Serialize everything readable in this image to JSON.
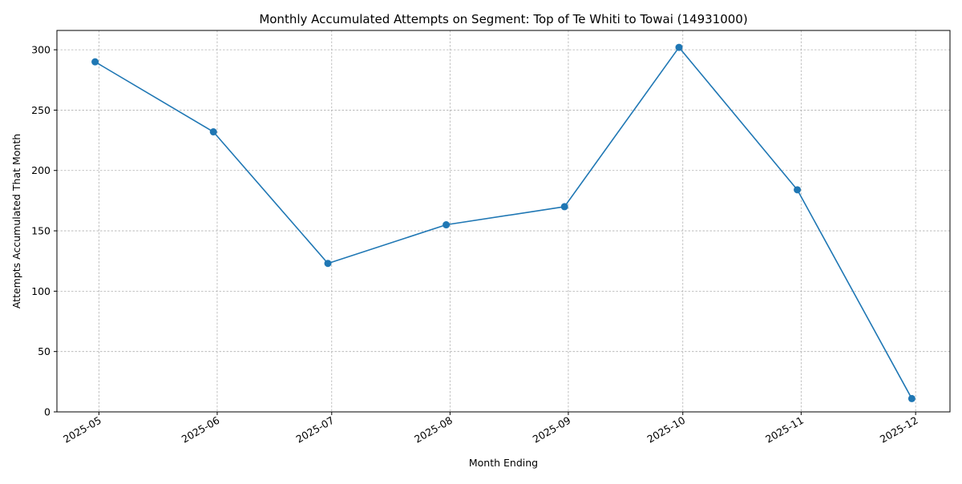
{
  "chart_data": {
    "type": "line",
    "title": "Monthly Accumulated Attempts on Segment: Top of Te Whiti to Towai (14931000)",
    "xlabel": "Month Ending",
    "ylabel": "Attempts Accumulated That Month",
    "x": [
      "2025-04-30",
      "2025-05-31",
      "2025-06-30",
      "2025-07-31",
      "2025-08-31",
      "2025-09-30",
      "2025-10-31",
      "2025-11-30"
    ],
    "x_tick_labels": [
      "2025-05",
      "2025-06",
      "2025-07",
      "2025-08",
      "2025-09",
      "2025-10",
      "2025-11",
      "2025-12"
    ],
    "x_tick_dates": [
      "2025-05-01",
      "2025-06-01",
      "2025-07-01",
      "2025-08-01",
      "2025-09-01",
      "2025-10-01",
      "2025-11-01",
      "2025-12-01"
    ],
    "xlim": [
      "2025-04-20",
      "2025-12-10"
    ],
    "y_ticks": [
      0,
      50,
      100,
      150,
      200,
      250,
      300
    ],
    "ylim": [
      0,
      316
    ],
    "series": [
      {
        "values": [
          290,
          232,
          123,
          155,
          170,
          302,
          184,
          11
        ],
        "color": "#1f77b4",
        "marker": "circle"
      }
    ],
    "grid": true,
    "legend": "none"
  }
}
